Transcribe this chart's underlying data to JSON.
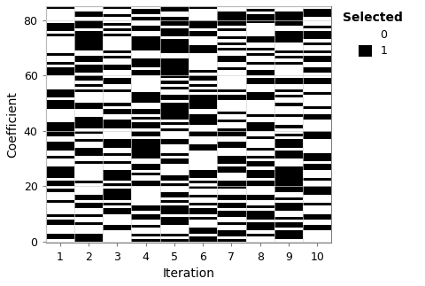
{
  "n_iterations": 10,
  "n_coefficients": 85,
  "xlabel": "Iteration",
  "ylabel": "Coefficient",
  "legend_title": "Selected",
  "xticks": [
    1,
    2,
    3,
    4,
    5,
    6,
    7,
    8,
    9,
    10
  ],
  "yticks": [
    0,
    20,
    40,
    60,
    80
  ],
  "ylim": [
    -0.5,
    85
  ],
  "xlim": [
    0.5,
    10.5
  ],
  "bg_color": "#ffffff",
  "grid_color": "#d3d3d3",
  "matrix": [
    [
      1,
      0,
      0,
      0,
      1,
      0,
      1,
      0,
      0,
      1
    ],
    [
      0,
      0,
      0,
      0,
      0,
      0,
      0,
      0,
      0,
      0
    ],
    [
      1,
      1,
      1,
      1,
      1,
      1,
      1,
      1,
      1,
      1
    ],
    [
      1,
      0,
      1,
      0,
      1,
      1,
      0,
      1,
      1,
      1
    ],
    [
      0,
      1,
      0,
      0,
      1,
      0,
      1,
      1,
      0,
      1
    ],
    [
      1,
      1,
      1,
      1,
      1,
      1,
      1,
      1,
      1,
      1
    ],
    [
      1,
      1,
      1,
      1,
      1,
      1,
      1,
      1,
      1,
      1
    ],
    [
      1,
      0,
      1,
      0,
      0,
      1,
      0,
      1,
      1,
      0
    ],
    [
      0,
      1,
      0,
      1,
      0,
      0,
      1,
      0,
      0,
      1
    ],
    [
      1,
      1,
      0,
      1,
      1,
      1,
      0,
      1,
      1,
      1
    ],
    [
      0,
      0,
      0,
      0,
      0,
      0,
      0,
      0,
      0,
      0
    ],
    [
      1,
      1,
      1,
      1,
      0,
      1,
      1,
      1,
      1,
      1
    ],
    [
      0,
      0,
      1,
      0,
      1,
      0,
      0,
      1,
      0,
      0
    ],
    [
      1,
      1,
      0,
      1,
      0,
      1,
      1,
      0,
      1,
      1
    ],
    [
      0,
      0,
      0,
      0,
      0,
      0,
      0,
      0,
      0,
      0
    ],
    [
      1,
      0,
      1,
      1,
      0,
      1,
      1,
      0,
      1,
      0
    ],
    [
      0,
      1,
      0,
      0,
      1,
      0,
      0,
      1,
      0,
      1
    ],
    [
      1,
      1,
      1,
      1,
      1,
      0,
      1,
      1,
      1,
      1
    ],
    [
      0,
      0,
      0,
      0,
      0,
      0,
      0,
      0,
      0,
      0
    ],
    [
      1,
      0,
      1,
      0,
      1,
      1,
      0,
      1,
      1,
      0
    ],
    [
      1,
      1,
      1,
      1,
      1,
      1,
      1,
      1,
      1,
      1
    ],
    [
      1,
      1,
      1,
      1,
      1,
      1,
      1,
      1,
      1,
      1
    ],
    [
      0,
      1,
      0,
      0,
      0,
      1,
      0,
      0,
      0,
      1
    ],
    [
      1,
      0,
      1,
      1,
      1,
      0,
      1,
      1,
      1,
      0
    ],
    [
      1,
      1,
      1,
      1,
      1,
      1,
      1,
      1,
      1,
      1
    ],
    [
      1,
      1,
      1,
      1,
      0,
      1,
      1,
      1,
      0,
      1
    ],
    [
      1,
      1,
      1,
      1,
      1,
      1,
      1,
      1,
      1,
      1
    ],
    [
      1,
      0,
      0,
      0,
      1,
      1,
      1,
      0,
      0,
      1
    ],
    [
      1,
      1,
      1,
      1,
      1,
      1,
      1,
      1,
      1,
      1
    ],
    [
      1,
      1,
      1,
      1,
      1,
      1,
      1,
      1,
      1,
      1
    ],
    [
      1,
      1,
      1,
      1,
      1,
      1,
      1,
      1,
      1,
      1
    ],
    [
      1,
      1,
      1,
      1,
      1,
      1,
      1,
      1,
      1,
      1
    ],
    [
      0,
      0,
      0,
      0,
      0,
      0,
      0,
      0,
      0,
      0
    ],
    [
      1,
      1,
      1,
      0,
      1,
      1,
      1,
      1,
      0,
      1
    ],
    [
      0,
      0,
      0,
      0,
      0,
      0,
      0,
      0,
      0,
      0
    ],
    [
      1,
      1,
      1,
      1,
      1,
      0,
      1,
      1,
      1,
      0
    ],
    [
      0,
      0,
      0,
      1,
      0,
      1,
      0,
      0,
      1,
      1
    ],
    [
      1,
      1,
      0,
      0,
      1,
      0,
      1,
      1,
      0,
      0
    ],
    [
      0,
      0,
      1,
      1,
      0,
      1,
      0,
      0,
      1,
      1
    ],
    [
      1,
      0,
      0,
      0,
      1,
      0,
      1,
      0,
      0,
      1
    ],
    [
      1,
      1,
      1,
      1,
      1,
      1,
      1,
      1,
      1,
      1
    ],
    [
      0,
      1,
      0,
      1,
      0,
      0,
      0,
      1,
      0,
      0
    ],
    [
      1,
      0,
      1,
      0,
      1,
      1,
      1,
      0,
      1,
      1
    ],
    [
      1,
      1,
      1,
      1,
      1,
      1,
      1,
      1,
      1,
      1
    ],
    [
      0,
      0,
      0,
      0,
      0,
      1,
      0,
      0,
      0,
      0
    ],
    [
      1,
      0,
      1,
      1,
      1,
      0,
      1,
      0,
      1,
      0
    ],
    [
      0,
      1,
      0,
      0,
      0,
      1,
      0,
      1,
      0,
      1
    ],
    [
      1,
      1,
      1,
      1,
      1,
      1,
      1,
      1,
      1,
      1
    ],
    [
      0,
      0,
      0,
      0,
      0,
      0,
      0,
      0,
      0,
      0
    ],
    [
      1,
      1,
      0,
      1,
      1,
      0,
      1,
      0,
      1,
      1
    ],
    [
      0,
      0,
      1,
      0,
      0,
      1,
      0,
      1,
      0,
      0
    ],
    [
      1,
      1,
      1,
      1,
      1,
      1,
      1,
      1,
      1,
      1
    ],
    [
      0,
      0,
      0,
      0,
      0,
      0,
      0,
      0,
      0,
      0
    ],
    [
      1,
      0,
      1,
      0,
      1,
      0,
      1,
      1,
      0,
      1
    ],
    [
      0,
      1,
      0,
      1,
      0,
      1,
      0,
      0,
      1,
      0
    ],
    [
      1,
      1,
      1,
      1,
      1,
      1,
      1,
      1,
      1,
      1
    ],
    [
      0,
      1,
      0,
      0,
      0,
      0,
      0,
      1,
      0,
      0
    ],
    [
      1,
      0,
      1,
      1,
      1,
      1,
      1,
      0,
      1,
      1
    ],
    [
      1,
      1,
      1,
      1,
      1,
      1,
      1,
      1,
      1,
      1
    ],
    [
      0,
      0,
      0,
      0,
      0,
      0,
      0,
      0,
      0,
      0
    ],
    [
      1,
      0,
      1,
      0,
      0,
      1,
      1,
      0,
      0,
      0
    ],
    [
      0,
      1,
      0,
      1,
      1,
      0,
      0,
      1,
      1,
      1
    ],
    [
      1,
      1,
      1,
      1,
      1,
      1,
      1,
      1,
      1,
      1
    ],
    [
      1,
      1,
      0,
      1,
      1,
      0,
      1,
      1,
      0,
      1
    ],
    [
      0,
      0,
      1,
      0,
      0,
      1,
      0,
      0,
      1,
      0
    ],
    [
      1,
      1,
      1,
      1,
      1,
      1,
      1,
      1,
      1,
      1
    ],
    [
      1,
      0,
      1,
      0,
      1,
      0,
      1,
      0,
      1,
      0
    ],
    [
      0,
      1,
      0,
      1,
      0,
      1,
      0,
      1,
      0,
      1
    ],
    [
      1,
      1,
      1,
      1,
      1,
      1,
      1,
      1,
      1,
      1
    ],
    [
      0,
      0,
      0,
      0,
      0,
      0,
      0,
      0,
      0,
      0
    ],
    [
      1,
      0,
      0,
      0,
      1,
      0,
      0,
      1,
      0,
      0
    ],
    [
      0,
      1,
      1,
      1,
      0,
      1,
      1,
      0,
      1,
      1
    ],
    [
      1,
      1,
      1,
      1,
      1,
      1,
      1,
      1,
      1,
      1
    ],
    [
      0,
      1,
      0,
      0,
      1,
      0,
      1,
      0,
      0,
      0
    ],
    [
      1,
      0,
      1,
      1,
      0,
      1,
      0,
      1,
      1,
      1
    ],
    [
      1,
      1,
      1,
      1,
      1,
      1,
      1,
      1,
      1,
      1
    ],
    [
      0,
      0,
      0,
      0,
      0,
      0,
      0,
      0,
      0,
      0
    ],
    [
      1,
      0,
      1,
      1,
      0,
      0,
      1,
      1,
      1,
      1
    ],
    [
      0,
      1,
      0,
      0,
      1,
      1,
      0,
      0,
      0,
      0
    ],
    [
      1,
      1,
      1,
      1,
      1,
      1,
      1,
      1,
      1,
      1
    ],
    [
      1,
      0,
      1,
      0,
      1,
      0,
      0,
      1,
      0,
      1
    ],
    [
      0,
      1,
      0,
      1,
      0,
      1,
      1,
      0,
      1,
      0
    ],
    [
      1,
      1,
      0,
      0,
      1,
      0,
      1,
      1,
      0,
      0
    ],
    [
      0,
      0,
      0,
      0,
      1,
      0,
      0,
      0,
      0,
      1
    ],
    [
      1,
      1,
      1,
      1,
      0,
      1,
      1,
      1,
      1,
      0
    ]
  ]
}
